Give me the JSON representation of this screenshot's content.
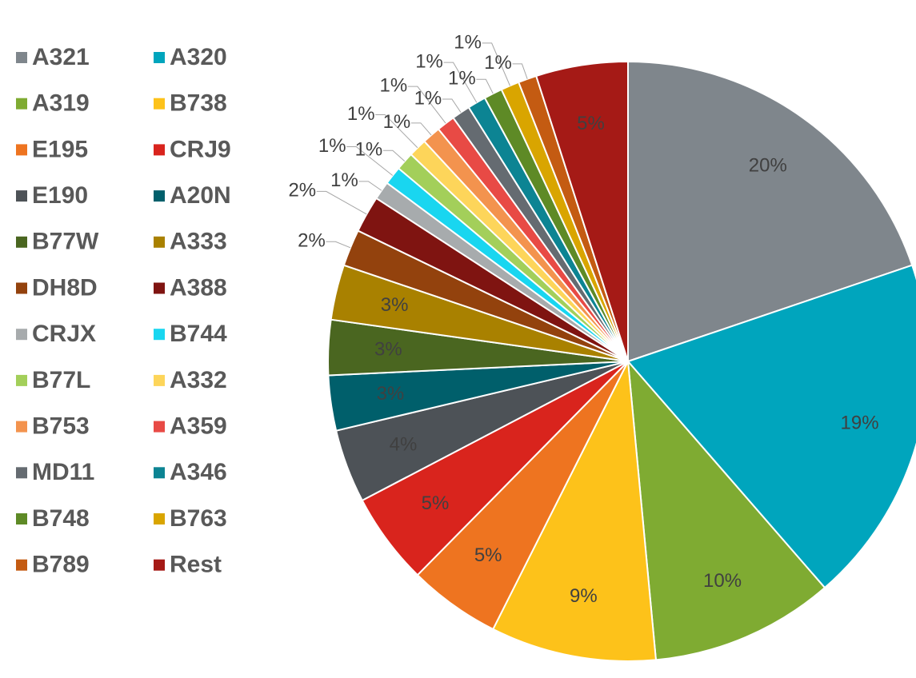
{
  "chart_data": {
    "type": "pie",
    "categories": [
      "A321",
      "A320",
      "A319",
      "B738",
      "E195",
      "CRJ9",
      "E190",
      "A20N",
      "B77W",
      "A333",
      "DH8D",
      "A388",
      "CRJX",
      "B744",
      "B77L",
      "A332",
      "B753",
      "A359",
      "MD11",
      "A346",
      "B748",
      "B763",
      "B789",
      "Rest"
    ],
    "values": [
      20,
      19,
      10,
      9,
      5,
      5,
      4,
      3,
      3,
      3,
      2,
      2,
      1,
      1,
      1,
      1,
      1,
      1,
      1,
      1,
      1,
      1,
      1,
      5
    ],
    "value_labels": [
      "20%",
      "19%",
      "10%",
      "9%",
      "5%",
      "5%",
      "4%",
      "3%",
      "3%",
      "3%",
      "2%",
      "2%",
      "1%",
      "1%",
      "1%",
      "1%",
      "1%",
      "1%",
      "1%",
      "1%",
      "1%",
      "1%",
      "1%",
      "5%"
    ],
    "colors": [
      "#7f868c",
      "#00a5bd",
      "#7fab32",
      "#fdc21a",
      "#ee7420",
      "#d9241d",
      "#4d5257",
      "#005f6b",
      "#4a6620",
      "#a98100",
      "#93420d",
      "#7f1411",
      "#a7abad",
      "#19d6f0",
      "#a3cf5a",
      "#fdd55a",
      "#f3934e",
      "#e84a45",
      "#656b71",
      "#0c8493",
      "#5e8a26",
      "#d9a500",
      "#c45b12",
      "#a51a16"
    ],
    "legend": "left"
  }
}
